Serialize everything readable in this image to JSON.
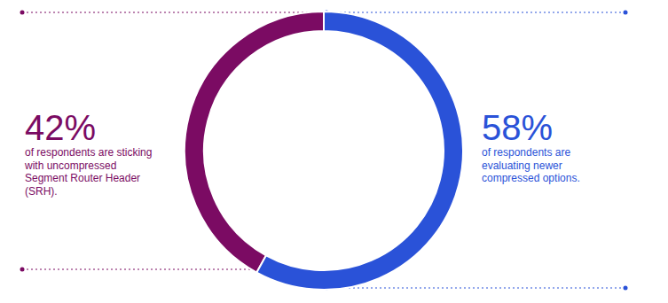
{
  "chart_data": {
    "type": "pie",
    "values": [
      42,
      58
    ],
    "value_labels": [
      "42%",
      "58%"
    ],
    "annotations": [
      [
        "of respondents are sticking",
        "with uncompressed",
        "Segment Router Header",
        "(SRH)."
      ],
      [
        "of respondents are",
        "evaluating newer",
        "compressed options."
      ]
    ],
    "colors": [
      "#7b0b63",
      "#2a52d8"
    ],
    "data_labels": true
  }
}
